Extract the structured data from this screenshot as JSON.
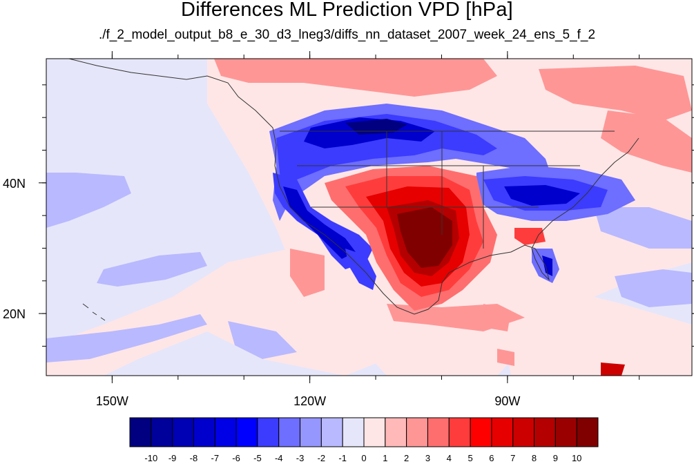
{
  "title": "Differences ML Prediction VPD [hPa]",
  "subtitle": "./f_2_model_output_b8_e_30_d3_lneg3/diffs_nn_dataset_2007_week_24_ens_5_f_2",
  "map": {
    "lon_range": [
      -160,
      -62
    ],
    "lat_range": [
      10.5,
      59
    ],
    "lon_ticks": [
      {
        "lon": -150,
        "label": "150W"
      },
      {
        "lon": -120,
        "label": "120W"
      },
      {
        "lon": -90,
        "label": "90W"
      }
    ],
    "lat_ticks": [
      {
        "lat": 40,
        "label": "40N"
      },
      {
        "lat": 20,
        "label": "20N"
      }
    ],
    "background_color": "#e6e6fa"
  },
  "colorbar": {
    "labels": [
      "-10",
      "-9",
      "-8",
      "-7",
      "-6",
      "-5",
      "-4",
      "-3",
      "-2",
      "-1",
      "0",
      "1",
      "2",
      "3",
      "4",
      "5",
      "6",
      "7",
      "8",
      "9",
      "10"
    ],
    "colors": [
      "#000080",
      "#00009b",
      "#0000b4",
      "#0000cd",
      "#0000e6",
      "#0000ff",
      "#3c3cff",
      "#6e6eff",
      "#9696ff",
      "#b9b9ff",
      "#e6e6fa",
      "#ffe6e6",
      "#ffb9b9",
      "#ff9696",
      "#ff6e6e",
      "#ff3c3c",
      "#ff0000",
      "#e60000",
      "#cd0000",
      "#b40000",
      "#9b0000",
      "#800000"
    ]
  }
}
